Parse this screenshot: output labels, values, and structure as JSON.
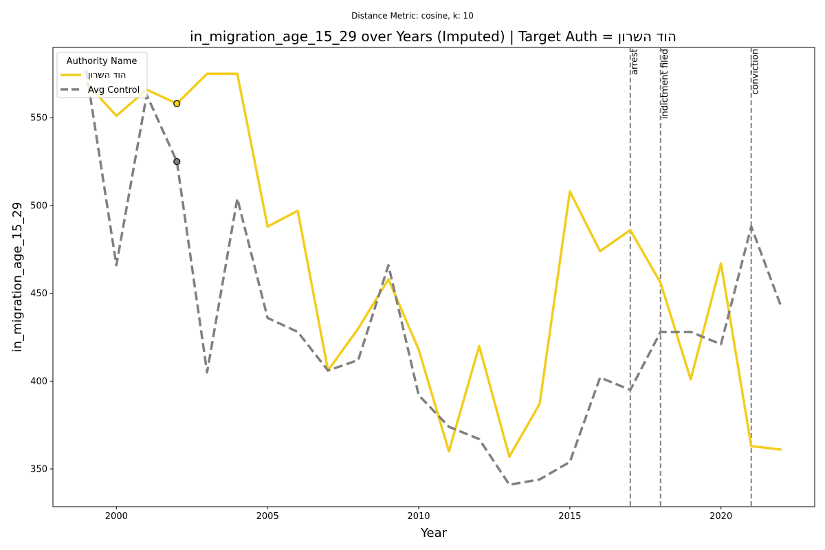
{
  "chart_data": {
    "type": "line",
    "suptitle": "Distance Metric: cosine, k: 10",
    "title": "in_migration_age_15_29 over Years (Imputed) | Target Auth = הוד השרון",
    "xlabel": "Year",
    "ylabel": "in_migration_age_15_29",
    "xlim": [
      1997.9,
      2023.1
    ],
    "ylim": [
      328.5,
      590
    ],
    "xticks": [
      2000,
      2005,
      2010,
      2015,
      2020
    ],
    "yticks": [
      350,
      400,
      450,
      500,
      550
    ],
    "grid": false,
    "legend": {
      "title": "Authority Name",
      "placement": "top-left"
    },
    "series": [
      {
        "name": "הוד השרון",
        "color": "#f2cd1e",
        "style": "solid",
        "x": [
          1999,
          2000,
          2001,
          2002,
          2003,
          2004,
          2005,
          2006,
          2007,
          2008,
          2009,
          2010,
          2011,
          2012,
          2013,
          2014,
          2015,
          2016,
          2017,
          2018,
          2019,
          2020,
          2021,
          2022
        ],
        "values": [
          570,
          551,
          566,
          558,
          575,
          575,
          488,
          497,
          406,
          430,
          458,
          418,
          360,
          420,
          357,
          387,
          508,
          474,
          486,
          456,
          401,
          467,
          363,
          361
        ]
      },
      {
        "name": "Avg Control",
        "color": "#808080",
        "style": "dashed",
        "x": [
          1999,
          2000,
          2001,
          2002,
          2003,
          2004,
          2005,
          2006,
          2007,
          2008,
          2009,
          2010,
          2011,
          2012,
          2013,
          2014,
          2015,
          2016,
          2017,
          2018,
          2019,
          2020,
          2021,
          2022
        ],
        "values": [
          577,
          466,
          563,
          525,
          405,
          504,
          436,
          428,
          406,
          412,
          466,
          392,
          374,
          367,
          341,
          344,
          354,
          402,
          395,
          428,
          428,
          421,
          488,
          442
        ]
      }
    ],
    "markers": [
      {
        "series": "הוד השרון",
        "x": 2002,
        "y": 558,
        "color": "#f2cd1e"
      },
      {
        "series": "Avg Control",
        "x": 2002,
        "y": 525,
        "color": "#808080"
      }
    ],
    "events": [
      {
        "x": 2017,
        "label": "arrest"
      },
      {
        "x": 2018,
        "label": "indictment filed"
      },
      {
        "x": 2021,
        "label": "conviction"
      }
    ]
  }
}
